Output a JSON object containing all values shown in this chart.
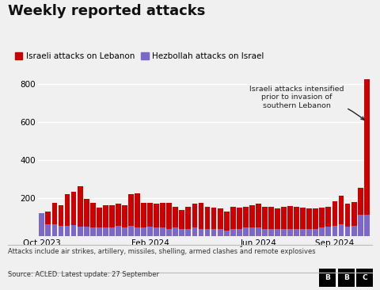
{
  "title": "Weekly reported attacks",
  "legend_israel": "Israeli attacks on Lebanon",
  "legend_hezbollah": "Hezbollah attacks on Israel",
  "israel_color": "#cc0000",
  "hezbollah_color": "#7b68c8",
  "footnote": "Attacks include air strikes, artillery, missiles, shelling, armed clashes and remote explosives",
  "source": "Source: ACLED. Latest update: 27 September",
  "annotation": "Israeli attacks intensified\nprior to invasion of\nsouthern Lebanon",
  "ylim": [
    0,
    860
  ],
  "yticks": [
    200,
    400,
    600,
    800
  ],
  "bg_color": "#f0f0f0",
  "plot_bg": "#f0f0f0",
  "israeli_attacks": [
    80,
    130,
    175,
    165,
    220,
    235,
    265,
    195,
    175,
    150,
    165,
    165,
    170,
    165,
    220,
    225,
    175,
    175,
    170,
    175,
    175,
    155,
    140,
    155,
    170,
    175,
    155,
    150,
    145,
    130,
    155,
    150,
    155,
    165,
    170,
    155,
    155,
    145,
    155,
    160,
    155,
    150,
    145,
    145,
    150,
    155,
    185,
    215,
    170,
    180,
    255,
    823
  ],
  "hezbollah_attacks": [
    120,
    65,
    65,
    55,
    55,
    60,
    50,
    50,
    45,
    45,
    45,
    45,
    55,
    45,
    55,
    45,
    45,
    50,
    45,
    45,
    40,
    45,
    40,
    40,
    45,
    40,
    40,
    40,
    40,
    30,
    40,
    40,
    45,
    45,
    45,
    40,
    40,
    40,
    40,
    40,
    40,
    40,
    40,
    40,
    45,
    50,
    55,
    65,
    50,
    55,
    112,
    112
  ],
  "x_tick_labels": [
    "Oct 2023",
    "Feb 2024",
    "Jun 2024",
    "Sep 2024"
  ],
  "x_tick_positions": [
    0,
    17,
    34,
    46
  ]
}
